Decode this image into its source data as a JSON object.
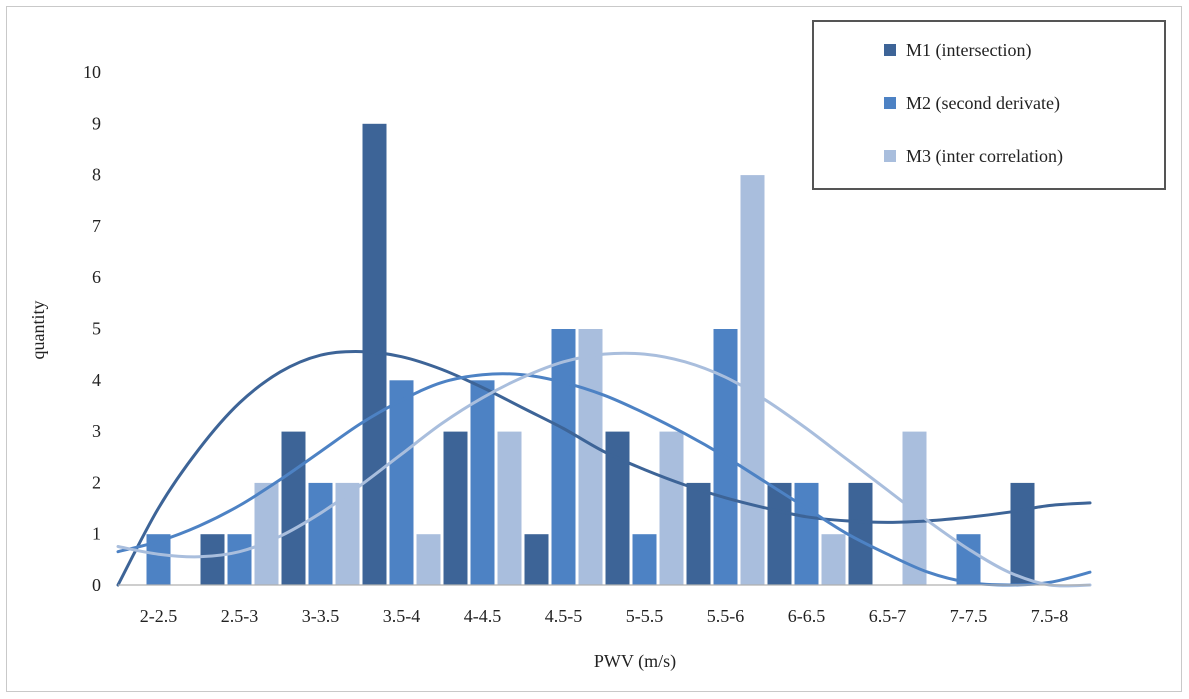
{
  "chart_data": {
    "type": "bar",
    "title": "",
    "xlabel": "PWV (m/s)",
    "ylabel": "quantity",
    "ylim": [
      0,
      10
    ],
    "yticks": [
      "0",
      "1",
      "2",
      "3",
      "4",
      "5",
      "6",
      "7",
      "8",
      "9",
      "10"
    ],
    "categories": [
      "2-2.5",
      "2.5-3",
      "3-3.5",
      "3.5-4",
      "4-4.5",
      "4.5-5",
      "5-5.5",
      "5.5-6",
      "6-6.5",
      "6.5-7",
      "7-7.5",
      "7.5-8"
    ],
    "series": [
      {
        "name": "M1 (intersection)",
        "color": "#3d6497",
        "values": [
          0,
          1,
          3,
          9,
          3,
          1,
          3,
          2,
          2,
          2,
          0,
          2
        ]
      },
      {
        "name": "M2 (second derivate)",
        "color": "#4d82c4",
        "values": [
          1,
          1,
          2,
          4,
          4,
          5,
          1,
          5,
          2,
          0,
          1,
          0
        ]
      },
      {
        "name": "M3 (inter correlation)",
        "color": "#a9bedd",
        "values": [
          0,
          2,
          2,
          1,
          3,
          5,
          3,
          8,
          1,
          3,
          0,
          0
        ]
      }
    ],
    "trendlines": [
      {
        "series": "M1 (intersection)",
        "color": "#3d6497",
        "x": [
          -0.5,
          0.0,
          0.5,
          1.0,
          1.5,
          2.0,
          2.5,
          3.0,
          3.5,
          4.0,
          4.5,
          5.0,
          5.5,
          6.0,
          6.5,
          7.0,
          7.5,
          8.0,
          8.5,
          9.0,
          9.5,
          10.0,
          10.5,
          11.0,
          11.5
        ],
        "y": [
          0.0,
          1.5,
          2.65,
          3.55,
          4.15,
          4.48,
          4.55,
          4.45,
          4.2,
          3.85,
          3.45,
          3.05,
          2.6,
          2.25,
          1.95,
          1.7,
          1.5,
          1.33,
          1.25,
          1.22,
          1.25,
          1.32,
          1.42,
          1.55,
          1.6
        ]
      },
      {
        "series": "M2 (second derivate)",
        "color": "#4d82c4",
        "x": [
          -0.5,
          0.0,
          0.5,
          1.0,
          1.5,
          2.0,
          2.5,
          3.0,
          3.5,
          4.0,
          4.5,
          5.0,
          5.5,
          6.0,
          6.5,
          7.0,
          7.5,
          8.0,
          8.5,
          9.0,
          9.5,
          10.0,
          10.5,
          11.0,
          11.5
        ],
        "y": [
          0.65,
          0.85,
          1.15,
          1.55,
          2.05,
          2.6,
          3.15,
          3.6,
          3.95,
          4.1,
          4.1,
          3.95,
          3.7,
          3.35,
          2.95,
          2.5,
          2.0,
          1.5,
          1.0,
          0.6,
          0.25,
          0.05,
          0.0,
          0.05,
          0.25
        ]
      },
      {
        "series": "M3 (inter correlation)",
        "color": "#a9bedd",
        "x": [
          -0.5,
          0.0,
          0.5,
          1.0,
          1.5,
          2.0,
          2.5,
          3.0,
          3.5,
          4.0,
          4.5,
          5.0,
          5.5,
          6.0,
          6.5,
          7.0,
          7.5,
          8.0,
          8.5,
          9.0,
          9.5,
          10.0,
          10.5,
          11.0,
          11.5
        ],
        "y": [
          0.75,
          0.6,
          0.55,
          0.65,
          0.95,
          1.4,
          1.95,
          2.55,
          3.15,
          3.65,
          4.05,
          4.35,
          4.5,
          4.5,
          4.35,
          4.05,
          3.6,
          3.05,
          2.45,
          1.85,
          1.25,
          0.7,
          0.25,
          0.0,
          0.0
        ]
      }
    ],
    "legend_position": "top-right",
    "grid": false
  }
}
